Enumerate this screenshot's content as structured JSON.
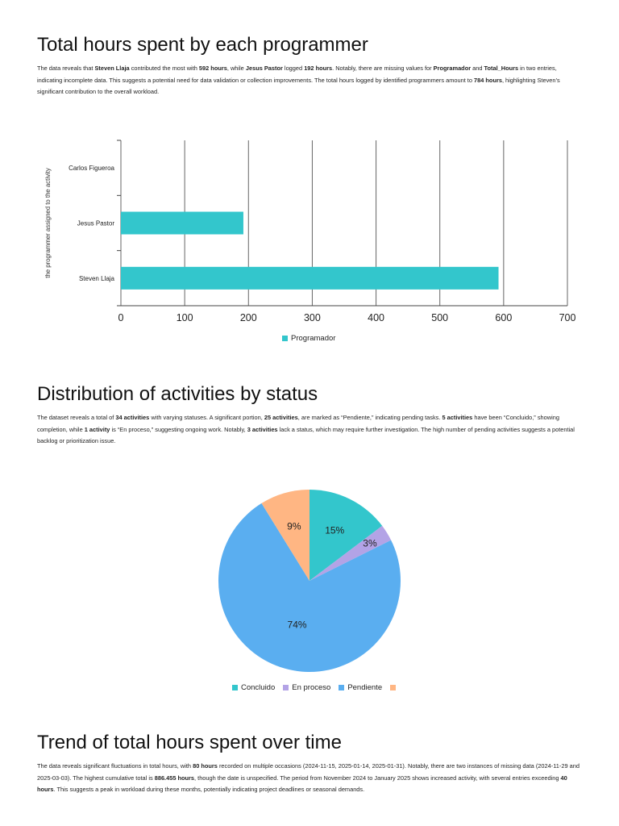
{
  "sections": [
    {
      "title": "Total hours spent by each programmer",
      "paragraph": [
        {
          "t": "The data reveals that "
        },
        {
          "t": "Steven Llaja",
          "b": true
        },
        {
          "t": " contributed the most with "
        },
        {
          "t": "592 hours",
          "b": true
        },
        {
          "t": ", while "
        },
        {
          "t": "Jesus Pastor",
          "b": true
        },
        {
          "t": " logged "
        },
        {
          "t": "192 hours",
          "b": true
        },
        {
          "t": ". Notably, there are missing values for "
        },
        {
          "t": "Programador",
          "b": true
        },
        {
          "t": " and "
        },
        {
          "t": "Total_Hours",
          "b": true
        },
        {
          "t": " in two entries, indicating incomplete data. This suggests a potential need for data validation or collection improvements. The total hours logged by identified programmers amount to "
        },
        {
          "t": "784 hours",
          "b": true
        },
        {
          "t": ", highlighting Steven’s significant contribution to the overall workload."
        }
      ]
    },
    {
      "title": "Distribution of activities by status",
      "paragraph": [
        {
          "t": "The dataset reveals a total of "
        },
        {
          "t": "34 activities",
          "b": true
        },
        {
          "t": " with varying statuses. A significant portion, "
        },
        {
          "t": "25 activities",
          "b": true
        },
        {
          "t": ", are marked as “Pendiente,” indicating pending tasks. "
        },
        {
          "t": "5 activities",
          "b": true
        },
        {
          "t": " have been “Concluido,” showing completion, while "
        },
        {
          "t": "1 activity",
          "b": true
        },
        {
          "t": " is “En proceso,” suggesting ongoing work. Notably, "
        },
        {
          "t": "3 activities",
          "b": true
        },
        {
          "t": " lack a status, which may require further investigation. The high number of pending activities suggests a potential backlog or prioritization issue."
        }
      ]
    },
    {
      "title": "Trend of total hours spent over time",
      "paragraph": [
        {
          "t": "The data reveals significant fluctuations in total hours, with "
        },
        {
          "t": "80 hours",
          "b": true
        },
        {
          "t": " recorded on multiple occasions (2024-11-15, 2025-01-14, 2025-01-31). Notably, there are two instances of missing data (2024-11-29 and 2025-03-03). The highest cumulative total is "
        },
        {
          "t": "886.455 hours",
          "b": true
        },
        {
          "t": ", though the date is unspecified. The period from November 2024 to January 2025 shows increased activity, with several entries exceeding "
        },
        {
          "t": "40 hours",
          "b": true
        },
        {
          "t": ". This suggests a peak in workload during these months, potentially indicating project deadlines or seasonal demands."
        }
      ]
    }
  ],
  "chart_data": [
    {
      "type": "bar",
      "orientation": "horizontal",
      "categories": [
        "Carlos Figueroa",
        "Jesus Pastor",
        "Steven Llaja"
      ],
      "series": [
        {
          "name": "Programador",
          "values": [
            0,
            192,
            592
          ]
        }
      ],
      "xlim": [
        0,
        700
      ],
      "xticks": [
        0,
        100,
        200,
        300,
        400,
        500,
        600,
        700
      ],
      "ylabel": "the programmer assigned to the activity",
      "xlabel": "",
      "grid": true,
      "legend": "bottom",
      "colors": [
        "#33c6cc"
      ]
    },
    {
      "type": "pie",
      "slices": [
        {
          "label": "Concluido",
          "value": 5,
          "pct_label": "15%",
          "color": "#33c6cc"
        },
        {
          "label": "En proceso",
          "value": 1,
          "pct_label": "3%",
          "color": "#b3a3e6"
        },
        {
          "label": "Pendiente",
          "value": 25,
          "pct_label": "74%",
          "color": "#5aaef0"
        },
        {
          "label": "",
          "value": 3,
          "pct_label": "9%",
          "color": "#ffb683"
        }
      ],
      "legend": "bottom"
    }
  ]
}
